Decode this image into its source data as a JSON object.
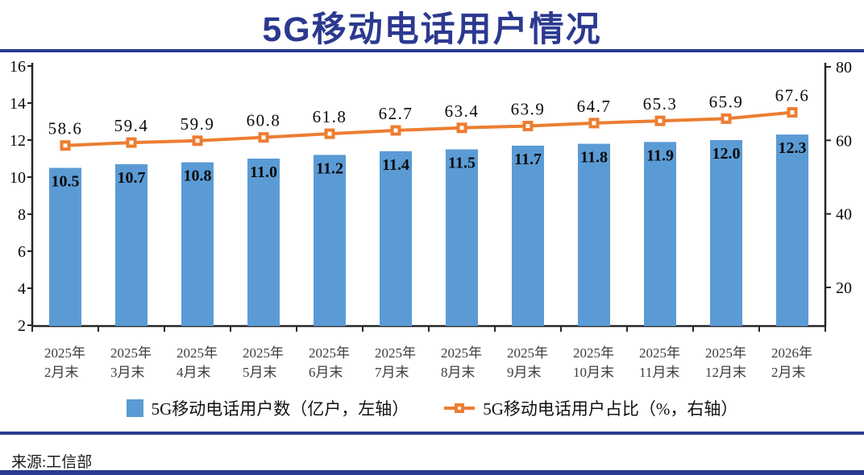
{
  "header": {
    "title": "5G移动电话用户情况",
    "accent_color": "#2B3990"
  },
  "chart_data": {
    "type": "bar+line",
    "title": "5G移动电话用户情况",
    "categories": [
      "2025年2月末",
      "2025年3月末",
      "2025年4月末",
      "2025年5月末",
      "2025年6月末",
      "2025年7月末",
      "2025年8月末",
      "2025年9月末",
      "2025年10月末",
      "2025年11月末",
      "2025年12月末",
      "2026年2月末"
    ],
    "series": [
      {
        "name": "5G移动电话用户数（亿户，左轴）",
        "type": "bar",
        "axis": "left",
        "color": "#5B9BD5",
        "values": [
          10.5,
          10.7,
          10.8,
          11.0,
          11.2,
          11.4,
          11.5,
          11.7,
          11.8,
          11.9,
          12.0,
          12.3
        ]
      },
      {
        "name": "5G移动电话用户占比（%，右轴）",
        "type": "line",
        "axis": "right",
        "color": "#ED7D31",
        "values": [
          58.6,
          59.4,
          59.9,
          60.8,
          61.8,
          62.7,
          63.4,
          63.9,
          64.7,
          65.3,
          65.9,
          67.6
        ]
      }
    ],
    "left_axis": {
      "min": 2,
      "max": 16,
      "ticks": [
        16,
        14,
        12,
        10,
        8,
        6,
        4,
        2
      ]
    },
    "right_axis": {
      "min": 20,
      "max": 80,
      "ticks": [
        80,
        60,
        40,
        20
      ]
    },
    "grid": false,
    "legend_position": "bottom",
    "axis_color": "#262626",
    "label_color": "#0a0a0a"
  },
  "source": {
    "label": "来源:工信部"
  }
}
